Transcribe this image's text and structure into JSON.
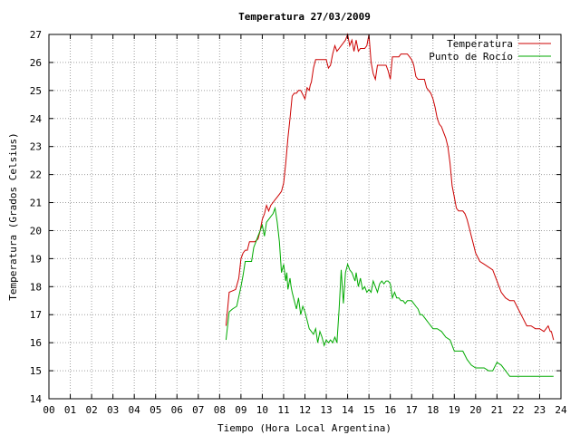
{
  "chart_data": {
    "type": "line",
    "title": "Temperatura 27/03/2009",
    "xlabel": "Tiempo (Hora Local Argentina)",
    "ylabel": "Temperatura (Grados Celsius)",
    "xlim": [
      0,
      24
    ],
    "ylim": [
      14,
      27
    ],
    "x_tick_labels": [
      "00",
      "01",
      "02",
      "03",
      "04",
      "05",
      "06",
      "07",
      "08",
      "09",
      "10",
      "11",
      "12",
      "13",
      "14",
      "15",
      "16",
      "17",
      "18",
      "19",
      "20",
      "21",
      "22",
      "23",
      "24"
    ],
    "y_tick_labels": [
      "14",
      "15",
      "16",
      "17",
      "18",
      "19",
      "20",
      "21",
      "22",
      "23",
      "24",
      "25",
      "26",
      "27"
    ],
    "grid": true,
    "legend_position": "top-right",
    "series": [
      {
        "name": "Temperatura",
        "color": "#cc0000",
        "x": [
          8.3,
          8.45,
          8.6,
          8.75,
          8.9,
          9.0,
          9.1,
          9.2,
          9.3,
          9.4,
          9.5,
          9.65,
          9.8,
          9.9,
          10.0,
          10.1,
          10.2,
          10.3,
          10.4,
          10.5,
          10.6,
          10.7,
          10.8,
          10.9,
          11.0,
          11.1,
          11.2,
          11.3,
          11.4,
          11.5,
          11.6,
          11.7,
          11.8,
          12.0,
          12.1,
          12.2,
          12.25,
          12.3,
          12.4,
          12.5,
          12.6,
          12.7,
          12.8,
          12.9,
          13.0,
          13.1,
          13.2,
          13.3,
          13.4,
          13.5,
          13.6,
          13.7,
          13.8,
          13.9,
          14.0,
          14.1,
          14.2,
          14.3,
          14.4,
          14.5,
          14.6,
          14.7,
          14.8,
          14.9,
          15.0,
          15.1,
          15.2,
          15.3,
          15.4,
          15.5,
          15.6,
          15.7,
          15.8,
          15.9,
          16.0,
          16.1,
          16.2,
          16.3,
          16.4,
          16.5,
          16.6,
          16.7,
          16.8,
          16.9,
          17.0,
          17.1,
          17.2,
          17.3,
          17.4,
          17.5,
          17.6,
          17.7,
          17.8,
          17.9,
          18.0,
          18.1,
          18.2,
          18.3,
          18.4,
          18.5,
          18.6,
          18.7,
          18.8,
          18.9,
          19.0,
          19.1,
          19.2,
          19.3,
          19.4,
          19.5,
          19.6,
          19.7,
          19.8,
          19.9,
          20.0,
          20.2,
          20.4,
          20.6,
          20.8,
          21.0,
          21.2,
          21.4,
          21.6,
          21.8,
          22.0,
          22.2,
          22.4,
          22.6,
          22.8,
          23.0,
          23.2,
          23.4,
          23.5,
          23.55,
          23.65
        ],
        "values": [
          16.6,
          17.8,
          17.85,
          17.9,
          18.3,
          19.0,
          19.2,
          19.3,
          19.3,
          19.6,
          19.6,
          19.6,
          19.7,
          20.0,
          20.4,
          20.6,
          20.9,
          20.7,
          20.9,
          21.0,
          21.1,
          21.2,
          21.3,
          21.4,
          21.7,
          22.4,
          23.3,
          24.0,
          24.8,
          24.9,
          24.9,
          25.0,
          25.0,
          24.7,
          25.1,
          25.0,
          25.2,
          25.3,
          25.8,
          26.1,
          26.1,
          26.1,
          26.1,
          26.1,
          26.1,
          25.8,
          25.9,
          26.3,
          26.6,
          26.4,
          26.5,
          26.6,
          26.7,
          26.8,
          27.0,
          26.6,
          26.8,
          26.4,
          26.8,
          26.4,
          26.5,
          26.5,
          26.5,
          26.6,
          27.0,
          26.0,
          25.6,
          25.4,
          25.9,
          25.9,
          25.9,
          25.9,
          25.9,
          25.7,
          25.4,
          26.2,
          26.2,
          26.2,
          26.2,
          26.3,
          26.3,
          26.3,
          26.3,
          26.2,
          26.1,
          25.9,
          25.5,
          25.4,
          25.4,
          25.4,
          25.4,
          25.1,
          25.0,
          24.9,
          24.7,
          24.4,
          24.0,
          23.8,
          23.7,
          23.5,
          23.3,
          23.0,
          22.4,
          21.6,
          21.2,
          20.8,
          20.7,
          20.7,
          20.7,
          20.6,
          20.4,
          20.1,
          19.8,
          19.5,
          19.2,
          18.9,
          18.8,
          18.7,
          18.6,
          18.2,
          17.8,
          17.6,
          17.5,
          17.5,
          17.2,
          16.9,
          16.6,
          16.6,
          16.5,
          16.5,
          16.4,
          16.6,
          16.4,
          16.4,
          16.1
        ]
      },
      {
        "name": "Punto de Rocío",
        "color": "#00aa00",
        "x": [
          8.3,
          8.45,
          8.6,
          8.8,
          9.0,
          9.1,
          9.2,
          9.3,
          9.4,
          9.5,
          9.6,
          9.7,
          9.8,
          9.9,
          10.0,
          10.1,
          10.2,
          10.3,
          10.4,
          10.5,
          10.6,
          10.7,
          10.8,
          10.9,
          11.0,
          11.1,
          11.15,
          11.2,
          11.3,
          11.35,
          11.4,
          11.5,
          11.6,
          11.7,
          11.8,
          11.9,
          12.0,
          12.1,
          12.2,
          12.3,
          12.4,
          12.5,
          12.6,
          12.7,
          12.8,
          12.9,
          13.0,
          13.1,
          13.2,
          13.3,
          13.4,
          13.5,
          13.6,
          13.7,
          13.8,
          13.9,
          14.0,
          14.05,
          14.1,
          14.2,
          14.25,
          14.3,
          14.35,
          14.4,
          14.5,
          14.6,
          14.7,
          14.8,
          14.9,
          15.0,
          15.1,
          15.2,
          15.3,
          15.4,
          15.5,
          15.6,
          15.7,
          15.8,
          15.9,
          16.0,
          16.1,
          16.2,
          16.3,
          16.4,
          16.5,
          16.6,
          16.7,
          16.8,
          16.9,
          17.0,
          17.1,
          17.2,
          17.3,
          17.4,
          17.5,
          17.6,
          17.7,
          17.8,
          17.9,
          18.0,
          18.2,
          18.4,
          18.6,
          18.8,
          19.0,
          19.2,
          19.4,
          19.6,
          19.8,
          20.0,
          20.2,
          20.4,
          20.6,
          20.8,
          21.0,
          21.2,
          21.4,
          21.6,
          21.8,
          22.0,
          22.2,
          22.4,
          22.6,
          22.8,
          23.0,
          23.2,
          23.3,
          23.4,
          23.5,
          23.55,
          23.65
        ],
        "values": [
          16.1,
          17.1,
          17.2,
          17.3,
          18.0,
          18.4,
          18.9,
          18.9,
          18.9,
          18.9,
          19.4,
          19.6,
          19.8,
          20.0,
          20.2,
          19.8,
          20.3,
          20.4,
          20.5,
          20.6,
          20.8,
          20.3,
          19.6,
          18.5,
          18.8,
          18.2,
          18.5,
          17.9,
          18.3,
          18.0,
          17.8,
          17.5,
          17.2,
          17.6,
          17.0,
          17.3,
          17.1,
          16.8,
          16.5,
          16.4,
          16.3,
          16.5,
          16.0,
          16.4,
          16.2,
          15.9,
          16.1,
          16.0,
          16.1,
          16.0,
          16.2,
          16.0,
          17.2,
          18.6,
          17.4,
          18.5,
          18.8,
          18.7,
          18.6,
          18.5,
          18.4,
          18.3,
          18.2,
          18.5,
          18.0,
          18.3,
          17.9,
          18.0,
          17.8,
          17.9,
          17.8,
          18.2,
          18.0,
          17.8,
          18.1,
          18.2,
          18.1,
          18.2,
          18.2,
          18.1,
          17.6,
          17.8,
          17.6,
          17.6,
          17.5,
          17.5,
          17.4,
          17.5,
          17.5,
          17.5,
          17.4,
          17.3,
          17.2,
          17.0,
          17.0,
          16.9,
          16.8,
          16.7,
          16.6,
          16.5,
          16.5,
          16.4,
          16.2,
          16.1,
          15.7,
          15.7,
          15.7,
          15.4,
          15.2,
          15.1,
          15.1,
          15.1,
          15.0,
          15.0,
          15.3,
          15.2,
          15.0,
          14.8,
          14.8,
          14.8,
          14.8,
          14.8,
          14.8,
          14.8,
          14.8,
          14.8,
          14.8,
          14.8,
          14.8,
          14.8,
          14.8
        ]
      }
    ]
  }
}
